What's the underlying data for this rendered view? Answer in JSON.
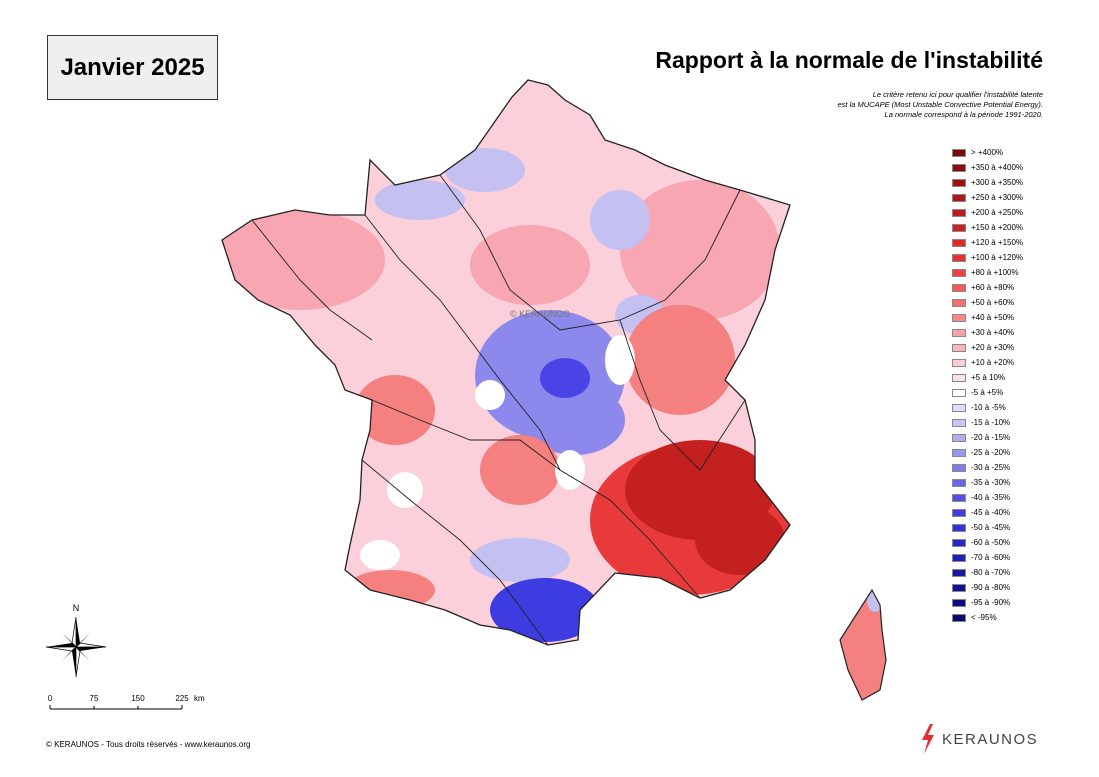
{
  "header": {
    "period": "Janvier 2025",
    "title": "Rapport à la normale de l'instabilité",
    "description": [
      "Le critère retenu ici pour qualifier l'instabilité latente",
      "est la MUCAPE (Most Unstable Convective Potential Energy).",
      "La normale correspond à la période 1991-2020."
    ]
  },
  "legend": [
    {
      "label": "> +400%",
      "color": "#7a0a0a"
    },
    {
      "label": "+350 à +400%",
      "color": "#8c0c0c"
    },
    {
      "label": "+300 à +350%",
      "color": "#9c1010"
    },
    {
      "label": "+250 à +300%",
      "color": "#ad1616"
    },
    {
      "label": "+200 à +250%",
      "color": "#bd1c1c"
    },
    {
      "label": "+150 à +200%",
      "color": "#cc2222"
    },
    {
      "label": "+120 à +150%",
      "color": "#db2a2a"
    },
    {
      "label": "+100 à +120%",
      "color": "#e83232"
    },
    {
      "label": "+80 à +100%",
      "color": "#f04040"
    },
    {
      "label": "+60 à +80%",
      "color": "#f45858"
    },
    {
      "label": "+50 à +60%",
      "color": "#f67070"
    },
    {
      "label": "+40 à +50%",
      "color": "#f78888"
    },
    {
      "label": "+30 à +40%",
      "color": "#f8a0a8"
    },
    {
      "label": "+20 à +30%",
      "color": "#f9b6c0"
    },
    {
      "label": "+10 à +20%",
      "color": "#fbcbd6"
    },
    {
      "label": "+5 à 10%",
      "color": "#fde0ea"
    },
    {
      "label": "-5 à +5%",
      "color": "#ffffff"
    },
    {
      "label": "-10 à -5%",
      "color": "#e0dcf6"
    },
    {
      "label": "-15 à -10%",
      "color": "#cac6f2"
    },
    {
      "label": "-20 à -15%",
      "color": "#b2aeee"
    },
    {
      "label": "-25 à -20%",
      "color": "#9a96ea"
    },
    {
      "label": "-30 à -25%",
      "color": "#827ee8"
    },
    {
      "label": "-35 à -30%",
      "color": "#6a64e6"
    },
    {
      "label": "-40 à -35%",
      "color": "#5450e4"
    },
    {
      "label": "-45 à -40%",
      "color": "#423cde"
    },
    {
      "label": "-50 à -45%",
      "color": "#3230d6"
    },
    {
      "label": "-60 à -50%",
      "color": "#2626c6"
    },
    {
      "label": "-70 à -60%",
      "color": "#1e1eb4"
    },
    {
      "label": "-80 à -70%",
      "color": "#1818a2"
    },
    {
      "label": "-90 à -80%",
      "color": "#121290"
    },
    {
      "label": "-95 à -90%",
      "color": "#0c0c80"
    },
    {
      "label": "< -95%",
      "color": "#080870"
    }
  ],
  "map": {
    "watermark": "© KERAUNOS",
    "colors": {
      "blue_core": "#4a44e6",
      "blue_dark": "#3c3ce0",
      "blue_mid": "#8c88ec",
      "blue_light": "#c4c0f2",
      "red_dark": "#c42020",
      "red_mid": "#e83a3a",
      "red_light": "#f48080",
      "pink_mid": "#f7a6b2",
      "pink_light": "#fbd0da",
      "outline": "#222222"
    }
  },
  "compass": {
    "north_label": "N"
  },
  "scale": {
    "labels": [
      "0",
      "75",
      "150",
      "225"
    ],
    "unit": "km"
  },
  "footer": {
    "copyright": "© KERAUNOS - Tous droits réservés - www.keraunos.org",
    "logo_text": "KERAUNOS",
    "logo_color": "#e03030"
  }
}
